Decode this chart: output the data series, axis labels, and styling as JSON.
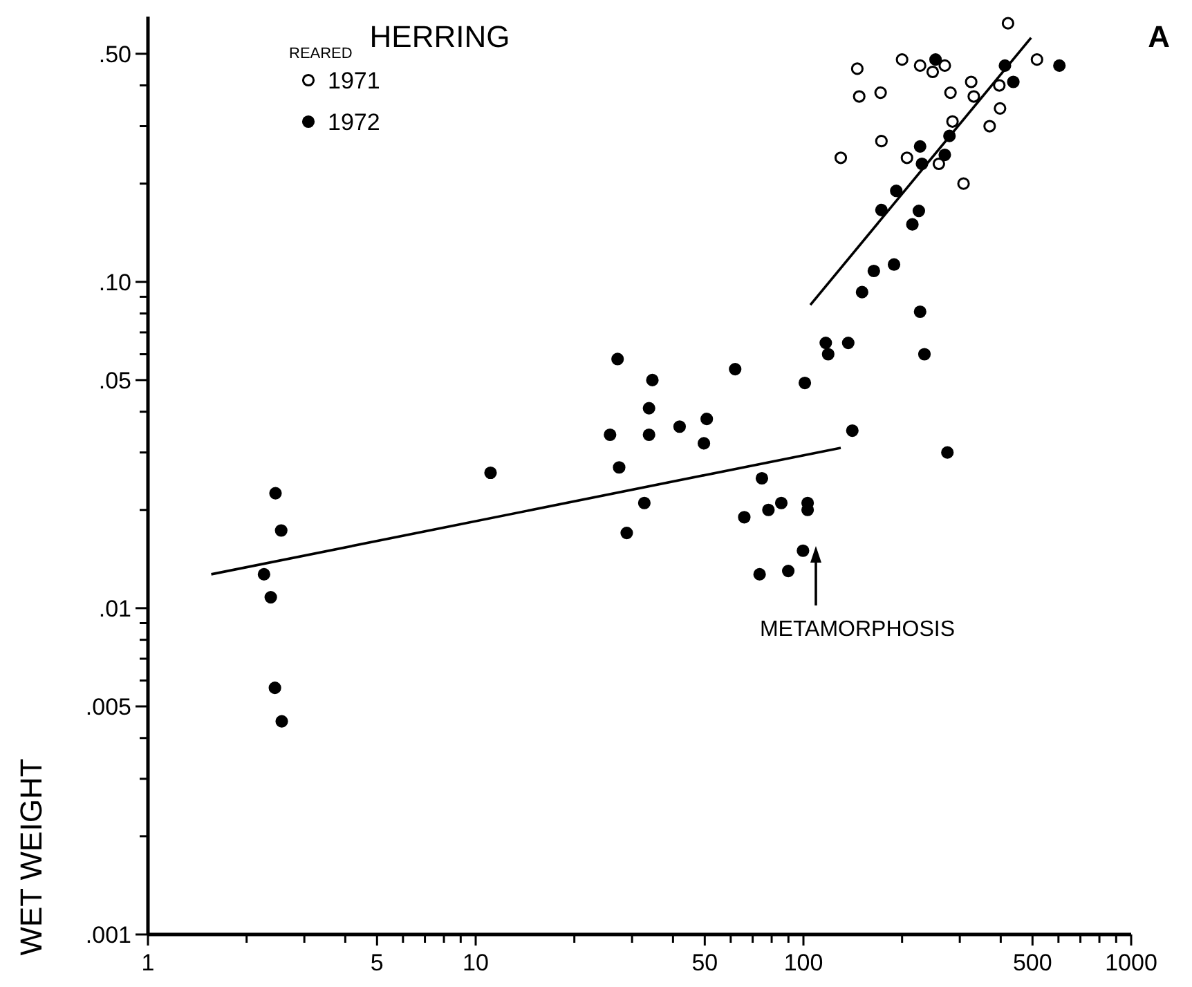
{
  "chart_data": {
    "type": "scatter",
    "title": "HERRING",
    "ylabel": "WET WEIGHT",
    "legend_title": "REARED",
    "legend": "top left",
    "grid": false,
    "log": "xy",
    "marker": "circle",
    "annotations": [
      "METAMORPHOSIS",
      "A"
    ],
    "xlim": [
      1,
      1000
    ],
    "ylim": [
      0.001,
      0.65
    ],
    "xticks": [
      1,
      {
        "value": 2,
        "label": null
      },
      {
        "value": 3,
        "label": null
      },
      {
        "value": 4,
        "label": null
      },
      5,
      {
        "value": 6,
        "label": null
      },
      {
        "value": 7,
        "label": null
      },
      {
        "value": 8,
        "label": null
      },
      {
        "value": 9,
        "label": null
      },
      10,
      {
        "value": 20,
        "label": null
      },
      {
        "value": 30,
        "label": null
      },
      {
        "value": 40,
        "label": null
      },
      50,
      {
        "value": 60,
        "label": null
      },
      {
        "value": 70,
        "label": null
      },
      {
        "value": 80,
        "label": null
      },
      {
        "value": 90,
        "label": null
      },
      100,
      {
        "value": 200,
        "label": null
      },
      {
        "value": 300,
        "label": null
      },
      {
        "value": 400,
        "label": null
      },
      500,
      {
        "value": 600,
        "label": null
      },
      {
        "value": 700,
        "label": null
      },
      {
        "value": 800,
        "label": null
      },
      {
        "value": 900,
        "label": null
      },
      1000
    ],
    "yticks": [
      {
        "value": 0.001,
        "label": ".001"
      },
      {
        "value": 0.002,
        "label": null
      },
      {
        "value": 0.003,
        "label": null
      },
      {
        "value": 0.004,
        "label": null
      },
      {
        "value": 0.005,
        "label": ".005"
      },
      {
        "value": 0.006,
        "label": null
      },
      {
        "value": 0.007,
        "label": null
      },
      {
        "value": 0.008,
        "label": null
      },
      {
        "value": 0.009,
        "label": null
      },
      {
        "value": 0.01,
        "label": ".01"
      },
      {
        "value": 0.02,
        "label": null
      },
      {
        "value": 0.03,
        "label": null
      },
      {
        "value": 0.04,
        "label": null
      },
      {
        "value": 0.05,
        "label": ".05"
      },
      {
        "value": 0.06,
        "label": null
      },
      {
        "value": 0.07,
        "label": null
      },
      {
        "value": 0.08,
        "label": null
      },
      {
        "value": 0.09,
        "label": null
      },
      {
        "value": 0.1,
        "label": ".10"
      },
      {
        "value": 0.2,
        "label": null
      },
      {
        "value": 0.3,
        "label": null
      },
      {
        "value": 0.4,
        "label": null
      },
      {
        "value": 0.5,
        "label": ".50"
      }
    ],
    "series": [
      {
        "name": "1971",
        "color": "#ffffff",
        "x": [
          421,
          146,
          200,
          227,
          248,
          270,
          516,
          148,
          172,
          281,
          325,
          331,
          396,
          398,
          370,
          285,
          173,
          130,
          207,
          259,
          308
        ],
        "values": [
          0.62,
          0.45,
          0.48,
          0.46,
          0.44,
          0.46,
          0.48,
          0.37,
          0.38,
          0.38,
          0.41,
          0.37,
          0.4,
          0.34,
          0.3,
          0.31,
          0.27,
          0.24,
          0.24,
          0.23,
          0.2
        ]
      },
      {
        "name": "1972",
        "color": "#000000",
        "x": [
          2.45,
          2.55,
          2.26,
          2.37,
          2.44,
          2.56,
          11.1,
          27.1,
          34.6,
          33.8,
          25.7,
          33.8,
          41.9,
          50.7,
          49.7,
          27.4,
          61.9,
          101,
          117,
          119,
          137,
          141,
          74.7,
          275,
          234,
          227,
          151,
          164,
          189,
          215,
          225,
          173,
          192,
          227,
          230,
          270,
          279,
          253,
          412,
          437,
          604,
          32.7,
          28.9,
          66,
          78.2,
          85.6,
          103,
          103,
          99.7,
          73.5,
          89.9
        ],
        "values": [
          0.0225,
          0.0173,
          0.0127,
          0.0108,
          0.0057,
          0.0045,
          0.026,
          0.058,
          0.05,
          0.041,
          0.034,
          0.034,
          0.036,
          0.038,
          0.032,
          0.027,
          0.054,
          0.049,
          0.065,
          0.06,
          0.065,
          0.035,
          0.025,
          0.03,
          0.06,
          0.081,
          0.093,
          0.108,
          0.113,
          0.15,
          0.165,
          0.166,
          0.19,
          0.26,
          0.23,
          0.245,
          0.28,
          0.48,
          0.46,
          0.41,
          0.46,
          0.021,
          0.017,
          0.019,
          0.02,
          0.021,
          0.021,
          0.02,
          0.015,
          0.0127,
          0.013
        ]
      },
      {
        "type": "line",
        "marker": "none",
        "color": "#000000",
        "x": [
          1.56,
          130
        ],
        "values": [
          0.0127,
          0.031
        ]
      },
      {
        "type": "line",
        "marker": "none",
        "color": "#000000",
        "x": [
          105,
          495
        ],
        "values": [
          0.085,
          0.56
        ]
      }
    ]
  }
}
